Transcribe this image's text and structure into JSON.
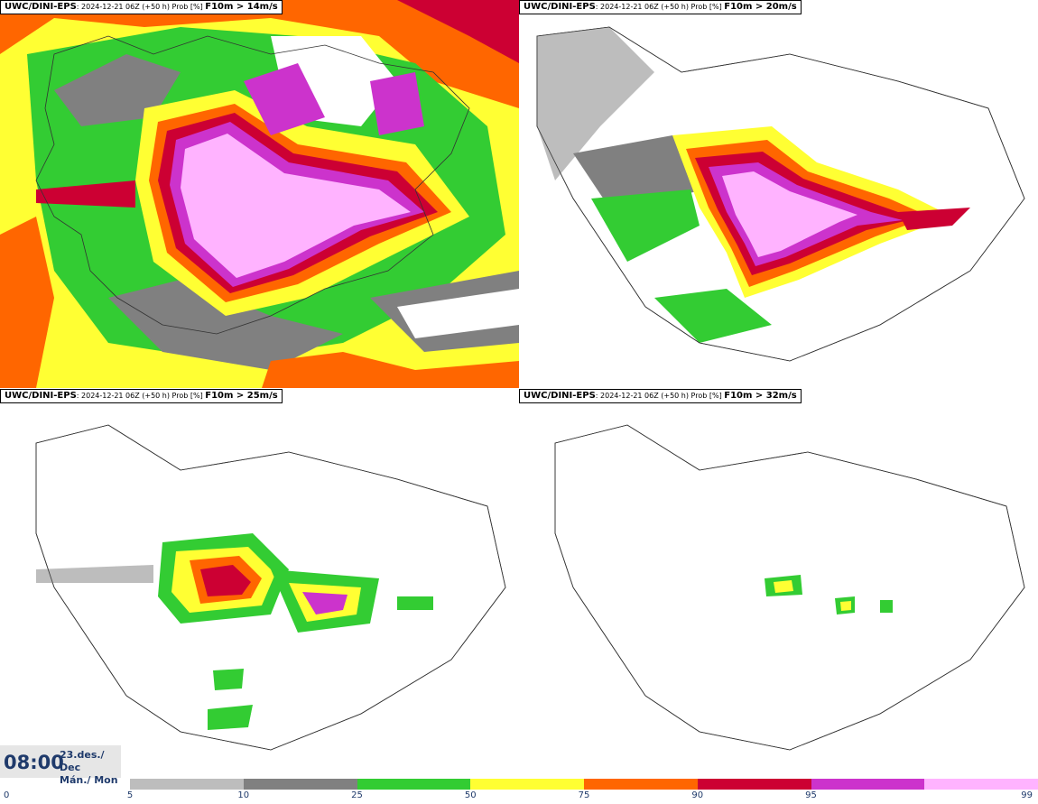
{
  "panels": [
    {
      "model": "UWC/DINI-EPS",
      "meta": "2024-12-21 06Z (+50 h) Prob [%]",
      "threshold": "F10m > 14m/s"
    },
    {
      "model": "UWC/DINI-EPS",
      "meta": "2024-12-21 06Z (+50 h) Prob [%]",
      "threshold": "F10m > 20m/s"
    },
    {
      "model": "UWC/DINI-EPS",
      "meta": "2024-12-21 06Z (+50 h) Prob [%]",
      "threshold": "F10m > 25m/s"
    },
    {
      "model": "UWC/DINI-EPS",
      "meta": "2024-12-21 06Z (+50 h) Prob [%]",
      "threshold": "F10m > 32m/s"
    }
  ],
  "time": {
    "hour": "08:00",
    "date_line1": "23.des./ Dec",
    "date_line2": "Mán./ Mon"
  },
  "legend": {
    "ticks": [
      "0",
      "5",
      "10",
      "25",
      "50",
      "75",
      "90",
      "95",
      "99"
    ],
    "colors": [
      "#bdbdbd",
      "#808080",
      "#33cc33",
      "#ffff33",
      "#ff6600",
      "#cc0033",
      "#cc33cc",
      "#ffb3ff"
    ]
  }
}
